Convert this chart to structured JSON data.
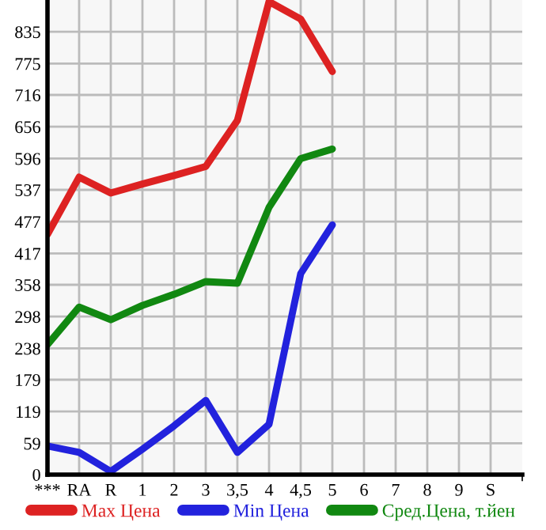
{
  "chart_data": {
    "type": "line",
    "categories": [
      "***",
      "RA",
      "R",
      "1",
      "2",
      "3",
      "3,5",
      "4",
      "4,5",
      "5",
      "6",
      "7",
      "8",
      "9",
      "S"
    ],
    "series": [
      {
        "name": "Max Цена",
        "color": "#dd2222",
        "values": [
          453,
          561,
          531,
          548,
          564,
          581,
          668,
          892,
          859,
          760,
          null,
          null,
          null,
          null,
          null
        ]
      },
      {
        "name": "Min Цена",
        "color": "#2222dd",
        "values": [
          54,
          42,
          6,
          48,
          92,
          140,
          42,
          95,
          379,
          471,
          null,
          null,
          null,
          null,
          null
        ]
      },
      {
        "name": "Сред.Цена, т.йен",
        "color": "#118811",
        "values": [
          245,
          316,
          292,
          319,
          340,
          364,
          361,
          504,
          596,
          614,
          null,
          null,
          null,
          null,
          null
        ]
      }
    ],
    "ylim": [
      0,
      895
    ],
    "yticks": [
      0,
      59,
      119,
      179,
      238,
      298,
      358,
      417,
      477,
      537,
      596,
      656,
      716,
      775,
      835
    ],
    "grid": true,
    "legend": "bottom",
    "marker": "none",
    "line_style": "solid"
  }
}
